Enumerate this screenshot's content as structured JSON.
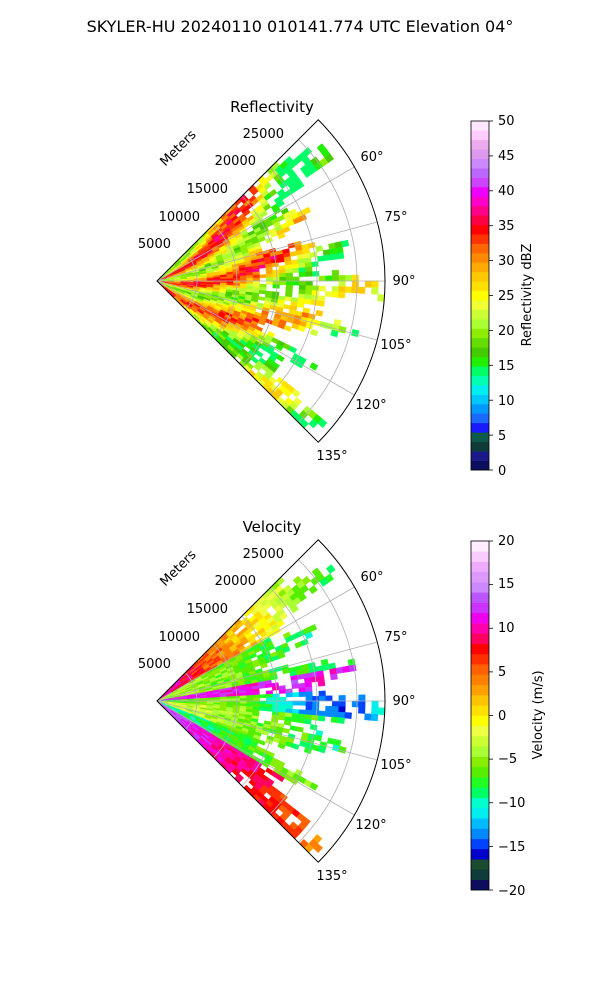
{
  "figure": {
    "suptitle": "SKYLER-HU  20240110  010141.774 UTC Elevation 04°"
  },
  "colors": {
    "reflectivity_cmap": [
      "#0d0d5e",
      "#1a1a8a",
      "#0f3b3b",
      "#0d5a4a",
      "#1a1aff",
      "#1a6aff",
      "#0099ff",
      "#00c8ff",
      "#00eeee",
      "#00ffb0",
      "#00ff66",
      "#22ee00",
      "#44cc00",
      "#66dd00",
      "#8cee00",
      "#aaff33",
      "#ccff33",
      "#eeff33",
      "#ffff00",
      "#ffe000",
      "#ffc800",
      "#ffaa00",
      "#ff8800",
      "#ff6600",
      "#ff3300",
      "#ff0000",
      "#ff0044",
      "#ff0088",
      "#ff00cc",
      "#ee00ff",
      "#cc44ff",
      "#bb66ff",
      "#cc88ff",
      "#dd99ee",
      "#eeaaee",
      "#ffccff",
      "#ffe6ff"
    ],
    "velocity_cmap": [
      "#0d0d5e",
      "#0f3b3b",
      "#1a4a30",
      "#0000cc",
      "#0044ff",
      "#0088ff",
      "#00bbff",
      "#00eeee",
      "#00ffcc",
      "#00ff66",
      "#22ff22",
      "#55ee00",
      "#88ee00",
      "#aaff33",
      "#ccff33",
      "#eeff44",
      "#ffff00",
      "#ffe000",
      "#ffc400",
      "#ffa000",
      "#ff8000",
      "#ff6000",
      "#ff3000",
      "#ff0000",
      "#ff0060",
      "#ff00aa",
      "#ee00ee",
      "#cc33ff",
      "#bb55ff",
      "#cc88ff",
      "#dd99ff",
      "#eeaaff",
      "#f8ccff",
      "#ffeeff"
    ]
  },
  "chart_data": [
    {
      "type": "heatmap",
      "subtype": "polar-ppi-sector",
      "title": "Reflectivity",
      "radial_label": "Meters",
      "radial_ticks": [
        "5000",
        "10000",
        "15000",
        "20000",
        "25000"
      ],
      "angle_ticks": [
        "60°",
        "75°",
        "90°",
        "105°",
        "120°",
        "135°"
      ],
      "angle_range_deg": [
        45,
        135
      ],
      "range_max_m": 28000,
      "colorbar": {
        "label": "Reflectivity dBZ",
        "range": [
          0,
          50
        ],
        "ticks": [
          "0",
          "5",
          "10",
          "15",
          "20",
          "25",
          "30",
          "35",
          "40",
          "45",
          "50"
        ]
      },
      "grid": true
    },
    {
      "type": "heatmap",
      "subtype": "polar-ppi-sector",
      "title": "Velocity",
      "radial_label": "Meters",
      "radial_ticks": [
        "5000",
        "10000",
        "15000",
        "20000",
        "25000"
      ],
      "angle_ticks": [
        "60°",
        "75°",
        "90°",
        "105°",
        "120°",
        "135°"
      ],
      "angle_range_deg": [
        45,
        135
      ],
      "range_max_m": 28000,
      "colorbar": {
        "label": "Velocity (m/s)",
        "range": [
          -20,
          20
        ],
        "ticks": [
          "−20",
          "−15",
          "−10",
          "−5",
          "0",
          "5",
          "10",
          "15",
          "20"
        ]
      },
      "grid": true
    }
  ]
}
